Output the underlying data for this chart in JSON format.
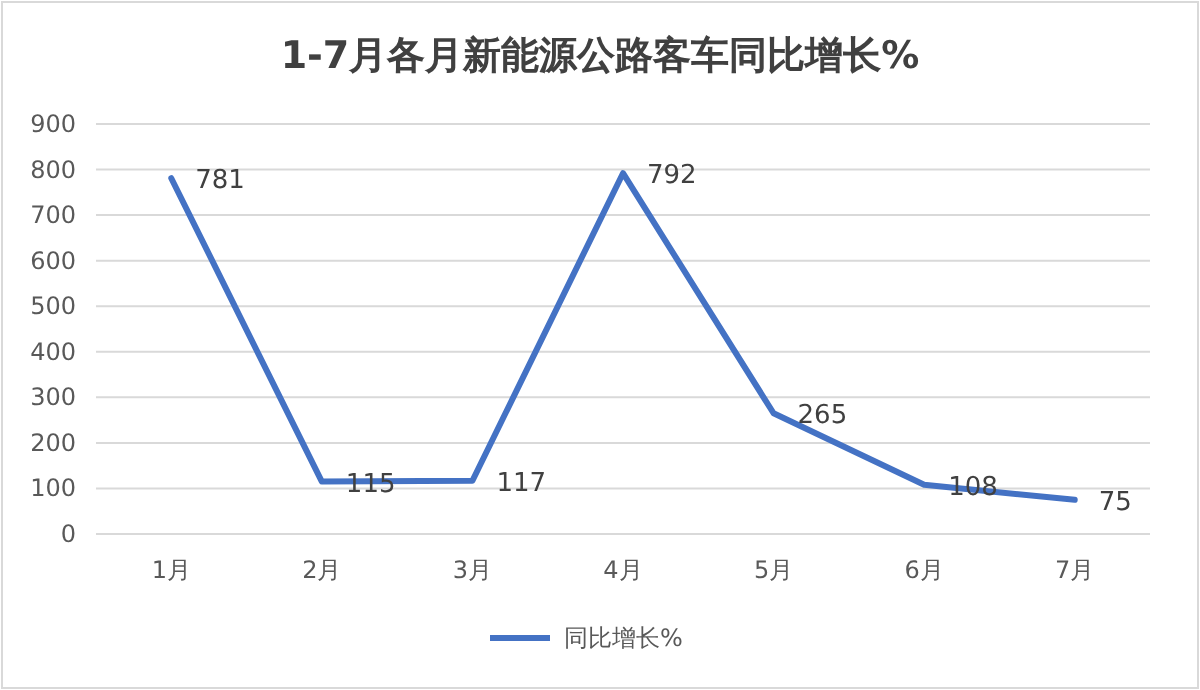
{
  "chart_data": {
    "type": "line",
    "title": "1-7月各月新能源公路客车同比增长%",
    "categories": [
      "1月",
      "2月",
      "3月",
      "4月",
      "5月",
      "6月",
      "7月"
    ],
    "series": [
      {
        "name": "同比增长%",
        "color": "#4472c4",
        "values": [
          781,
          115,
          117,
          792,
          265,
          108,
          75
        ]
      }
    ],
    "ylim": [
      0,
      900
    ],
    "yticks": [
      0,
      100,
      200,
      300,
      400,
      500,
      600,
      700,
      800,
      900
    ],
    "grid": "y",
    "legend": "bottom",
    "data_labels": true,
    "marker": "none",
    "line_style": "solid"
  }
}
